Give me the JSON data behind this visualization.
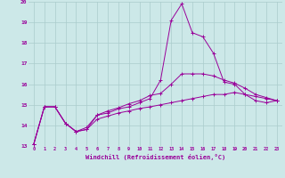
{
  "xlabel": "Windchill (Refroidissement éolien,°C)",
  "x": [
    0,
    1,
    2,
    3,
    4,
    5,
    6,
    7,
    8,
    9,
    10,
    11,
    12,
    13,
    14,
    15,
    16,
    17,
    18,
    19,
    20,
    21,
    22,
    23
  ],
  "line1": [
    13.1,
    14.9,
    14.9,
    14.1,
    13.7,
    13.8,
    14.5,
    14.6,
    14.8,
    14.9,
    15.1,
    15.3,
    16.2,
    19.1,
    19.9,
    18.5,
    18.3,
    17.5,
    16.1,
    16.0,
    15.5,
    15.2,
    15.1,
    15.2
  ],
  "line2": [
    13.1,
    14.9,
    14.9,
    14.1,
    13.7,
    13.9,
    14.5,
    14.7,
    14.85,
    15.05,
    15.2,
    15.45,
    15.55,
    16.0,
    16.5,
    16.5,
    16.5,
    16.4,
    16.2,
    16.05,
    15.8,
    15.5,
    15.35,
    15.2
  ],
  "line3": [
    13.1,
    14.9,
    14.9,
    14.1,
    13.7,
    13.8,
    14.3,
    14.45,
    14.6,
    14.7,
    14.82,
    14.9,
    15.0,
    15.1,
    15.2,
    15.3,
    15.4,
    15.5,
    15.5,
    15.6,
    15.5,
    15.4,
    15.3,
    15.2
  ],
  "color": "#990099",
  "bg_color": "#cce8e8",
  "grid_color": "#aacccc",
  "ylim": [
    13,
    20
  ],
  "yticks": [
    13,
    14,
    15,
    16,
    17,
    18,
    19,
    20
  ],
  "xlim": [
    -0.5,
    23.5
  ],
  "xticks": [
    0,
    1,
    2,
    3,
    4,
    5,
    6,
    7,
    8,
    9,
    10,
    11,
    12,
    13,
    14,
    15,
    16,
    17,
    18,
    19,
    20,
    21,
    22,
    23
  ]
}
